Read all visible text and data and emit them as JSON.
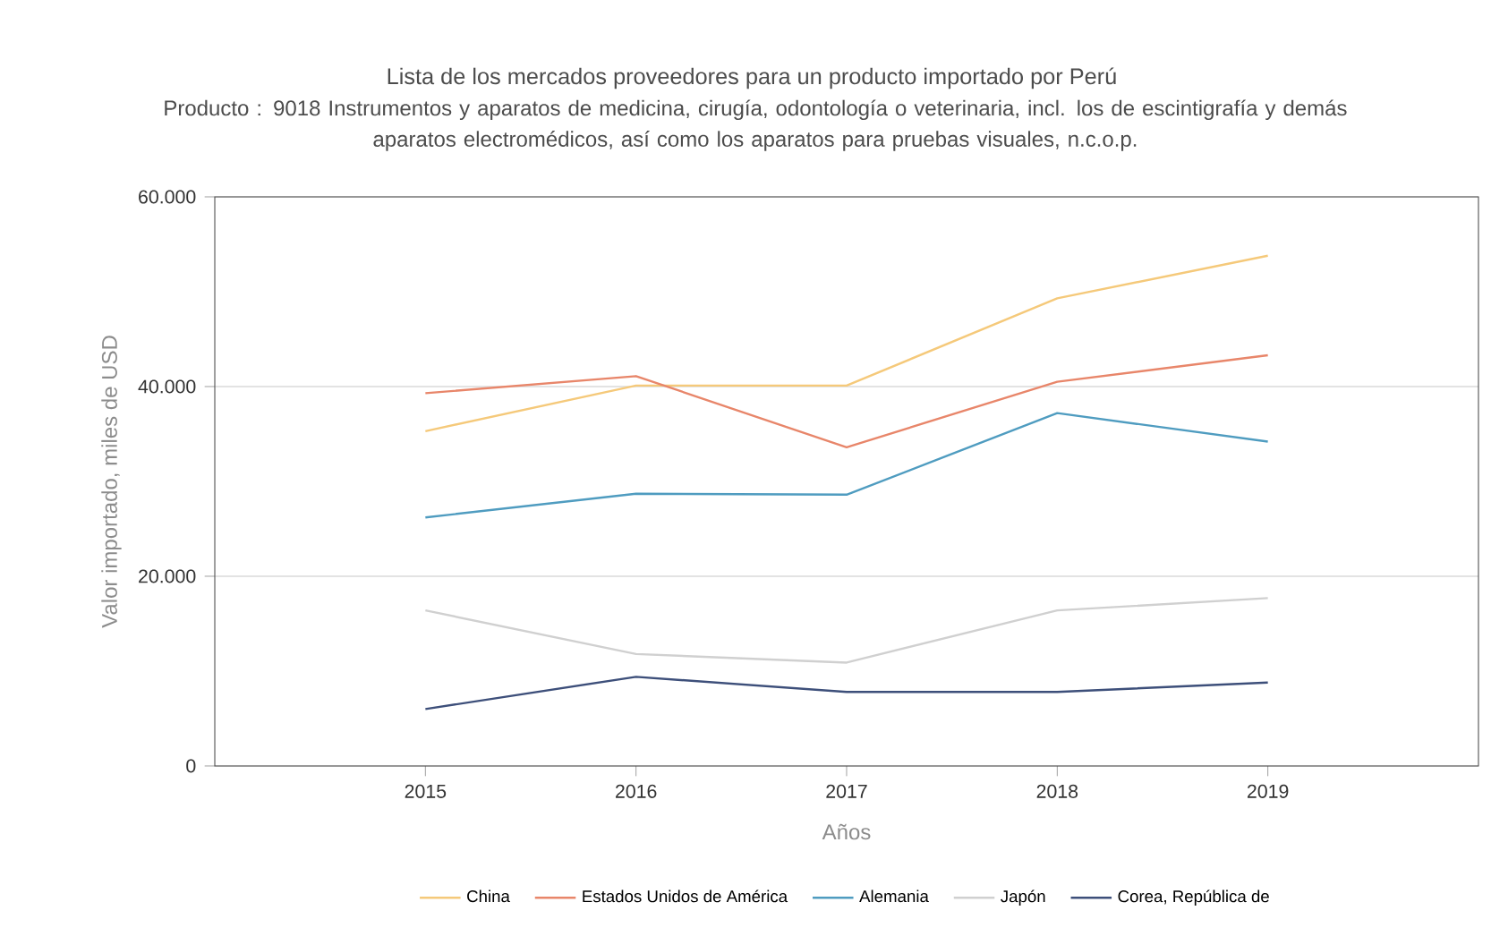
{
  "chart_data": {
    "type": "line",
    "title": "Lista de los mercados proveedores para un producto importado por Perú",
    "subtitle": "Producto : 9018 Instrumentos y aparatos de medicina, cirugía, odontología o veterinaria, incl. los de escintigrafía y demás aparatos electromédicos, así como los aparatos para pruebas visuales, n.c.o.p.",
    "xlabel": "Años",
    "ylabel": "Valor importado, miles de USD",
    "x": [
      2015,
      2016,
      2017,
      2018,
      2019
    ],
    "xlim": [
      2014,
      2020
    ],
    "xticks": [
      2015,
      2016,
      2017,
      2018,
      2019
    ],
    "ylim": [
      0,
      60000
    ],
    "yticks": [
      {
        "value": 0,
        "label": "0"
      },
      {
        "value": 20000,
        "label": "20.000"
      },
      {
        "value": 40000,
        "label": "40.000"
      },
      {
        "value": 60000,
        "label": "60.000"
      }
    ],
    "grid": "y",
    "legend": "bottom",
    "series": [
      {
        "name": "China",
        "color": "#f5c97a",
        "values": [
          35300,
          40100,
          40100,
          49300,
          53800
        ]
      },
      {
        "name": "Estados Unidos de América",
        "color": "#e8866a",
        "values": [
          39300,
          41100,
          33600,
          40500,
          43300
        ]
      },
      {
        "name": "Alemania",
        "color": "#4f9cc0",
        "values": [
          26200,
          28700,
          28600,
          37200,
          34200
        ]
      },
      {
        "name": "Japón",
        "color": "#d0d0d0",
        "values": [
          16400,
          11800,
          10900,
          16400,
          17700
        ]
      },
      {
        "name": "Corea, República de",
        "color": "#3d4f7a",
        "values": [
          6000,
          9400,
          7800,
          7800,
          8800
        ]
      }
    ]
  }
}
